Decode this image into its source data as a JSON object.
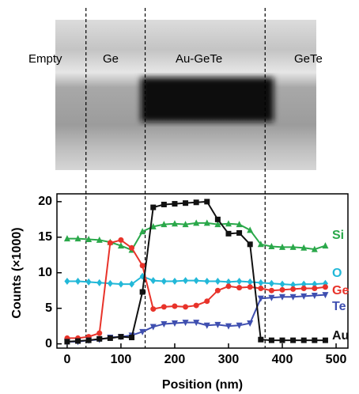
{
  "chart_data": {
    "type": "line",
    "image_labels": [
      "Empty",
      "Ge",
      "Au-GeTe",
      "GeTe"
    ],
    "x_label": "Position (nm)",
    "y_label": "Counts (×1000)",
    "xlim": [
      -19,
      522
    ],
    "ylim": [
      -0.6,
      21.1
    ],
    "xticks": [
      0,
      100,
      200,
      300,
      400,
      500
    ],
    "yticks": [
      0,
      5,
      10,
      15,
      20
    ],
    "boundaries": [
      35,
      145,
      368
    ],
    "x": [
      0,
      20,
      40,
      60,
      80,
      100,
      120,
      140,
      160,
      180,
      200,
      220,
      240,
      260,
      280,
      300,
      320,
      340,
      360,
      380,
      400,
      420,
      440,
      460,
      480
    ],
    "series": [
      {
        "name": "Si",
        "color": "#2aa84a",
        "marker": "triangle",
        "values": [
          14.8,
          14.8,
          14.7,
          14.6,
          14.3,
          13.8,
          13.2,
          15.8,
          16.5,
          16.8,
          16.9,
          16.8,
          17.0,
          17.0,
          16.8,
          16.9,
          16.8,
          16.0,
          14.0,
          13.7,
          13.6,
          13.6,
          13.5,
          13.3,
          13.8
        ]
      },
      {
        "name": "O",
        "color": "#22b8d8",
        "marker": "diamond",
        "values": [
          8.8,
          8.8,
          8.7,
          8.6,
          8.5,
          8.4,
          8.4,
          9.5,
          8.9,
          8.8,
          8.8,
          8.9,
          8.9,
          8.8,
          8.8,
          8.7,
          8.8,
          8.7,
          8.6,
          8.5,
          8.4,
          8.3,
          8.4,
          8.4,
          8.5
        ]
      },
      {
        "name": "Ge",
        "color": "#e8332a",
        "marker": "circle",
        "values": [
          0.8,
          0.8,
          1.0,
          1.5,
          14.2,
          14.6,
          13.5,
          11.0,
          4.9,
          5.2,
          5.3,
          5.2,
          5.4,
          6.0,
          7.5,
          8.1,
          7.9,
          8.0,
          7.8,
          7.5,
          7.6,
          7.7,
          7.8,
          7.8,
          8.0
        ]
      },
      {
        "name": "Te",
        "color": "#3f4fb0",
        "marker": "down-triangle",
        "values": [
          0.3,
          0.3,
          0.5,
          0.6,
          0.9,
          1.0,
          1.2,
          1.7,
          2.4,
          2.8,
          2.9,
          3.0,
          3.0,
          2.6,
          2.7,
          2.5,
          2.6,
          2.9,
          6.4,
          6.5,
          6.6,
          6.6,
          6.7,
          6.8,
          6.9
        ]
      },
      {
        "name": "Au",
        "color": "#111111",
        "marker": "square",
        "values": [
          0.3,
          0.4,
          0.5,
          0.7,
          0.8,
          1.0,
          0.9,
          7.3,
          19.2,
          19.6,
          19.7,
          19.8,
          19.9,
          20.0,
          17.5,
          15.5,
          15.6,
          14.0,
          0.6,
          0.5,
          0.5,
          0.5,
          0.5,
          0.5,
          0.5
        ]
      }
    ]
  }
}
